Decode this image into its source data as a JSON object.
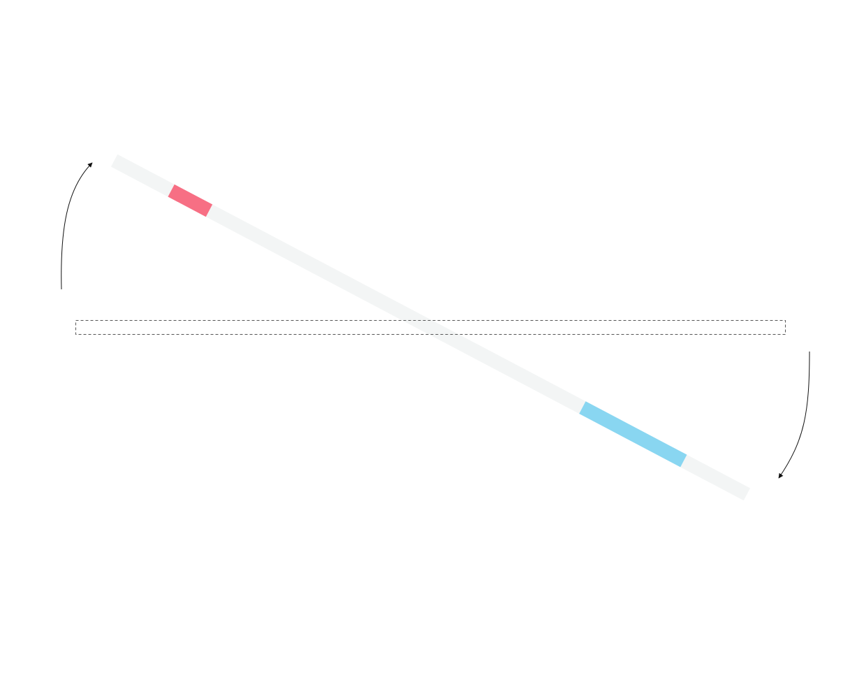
{
  "colors": {
    "background": "#ffffff",
    "track": "#f3f5f5",
    "segment_start": "#f76f84",
    "segment_end": "#89d6f1",
    "frame_stroke": "#555555",
    "arrow_stroke": "#111111"
  },
  "track": {
    "segments": [
      {
        "name": "start-segment",
        "from": 0.09,
        "to": 0.15,
        "color_key": "segment_start"
      },
      {
        "name": "end-segment",
        "from": 0.74,
        "to": 0.9,
        "color_key": "segment_end"
      }
    ]
  },
  "rotation_arrows": [
    {
      "name": "left-rotation-arrow-icon",
      "direction": "counter-clockwise"
    },
    {
      "name": "right-rotation-arrow-icon",
      "direction": "counter-clockwise"
    }
  ],
  "frame": {
    "style": "dashed"
  }
}
